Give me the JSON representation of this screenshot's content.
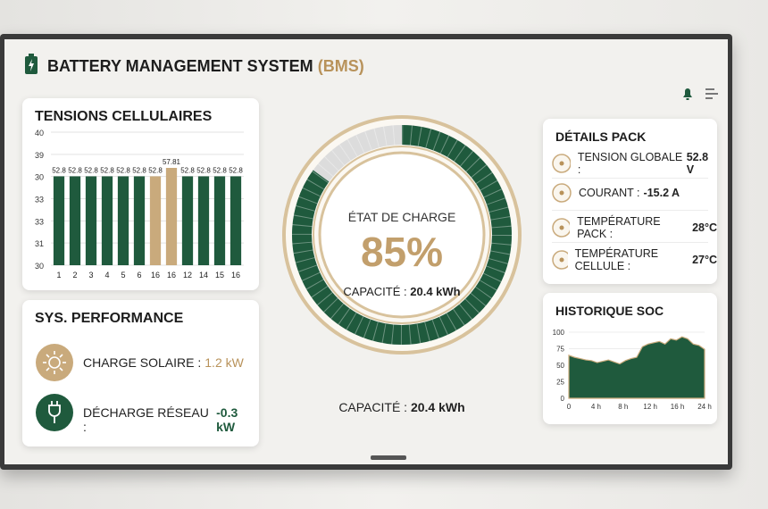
{
  "header": {
    "title": "BATTERY MANAGEMENT SYSTEM",
    "title_suffix": "(BMS)"
  },
  "cell_voltages": {
    "title": "TENSIONS CELLULAIRES",
    "yaxis_labels": [
      40,
      39,
      30,
      33,
      33,
      31,
      30
    ],
    "categories": [
      "1",
      "2",
      "3",
      "4",
      "5",
      "6",
      "16",
      "16",
      "12",
      "14",
      "15",
      "16"
    ],
    "values": [
      52.8,
      52.8,
      52.8,
      52.8,
      52.8,
      52.8,
      52.8,
      57.81,
      52.8,
      52.8,
      52.8,
      52.8
    ],
    "colors": [
      "#1f5a3d",
      "#1f5a3d",
      "#1f5a3d",
      "#1f5a3d",
      "#1f5a3d",
      "#1f5a3d",
      "#c9aa7c",
      "#c9aa7c",
      "#1f5a3d",
      "#1f5a3d",
      "#1f5a3d",
      "#1f5a3d"
    ]
  },
  "state_of_charge": {
    "label": "ÉTAT DE CHARGE",
    "value": 85,
    "value_label": "85%",
    "capacity_label": "CAPACITÉ :",
    "capacity_value": "20.4 kWh",
    "color": "#1f5a3d"
  },
  "pack_details": {
    "title": "DÉTAILS PACK",
    "items": [
      {
        "label": "TENSION GLOBALE :",
        "value": "52.8 V"
      },
      {
        "label": "COURANT :",
        "value": "-15.2 A"
      },
      {
        "label": "TEMPÉRATURE PACK :",
        "value": "28°C"
      },
      {
        "label": "TEMPÉRATURE CELLULE :",
        "value": "27°C"
      }
    ]
  },
  "performance": {
    "title": "SYS. PERFORMANCE",
    "items": [
      {
        "label": "CHARGE SOLAIRE :",
        "value": "1.2 kW"
      },
      {
        "label": "DÉCHARGE RÉSEAU :",
        "value": "-0.3 kW"
      }
    ]
  },
  "soc_history": {
    "type": "area",
    "title": "HISTORIQUE SOC",
    "ylim": [
      0,
      100
    ],
    "yticks": [
      0,
      25,
      50,
      75,
      100
    ],
    "xticks": [
      "0",
      "4 h",
      "8 h",
      "12 h",
      "16 h",
      "24 h"
    ],
    "values": [
      65,
      62,
      60,
      58,
      57,
      54,
      56,
      58,
      55,
      52,
      57,
      60,
      62,
      78,
      82,
      84,
      86,
      82,
      90,
      88,
      93,
      90,
      82,
      80,
      74
    ],
    "color": "#1f5a3d"
  }
}
